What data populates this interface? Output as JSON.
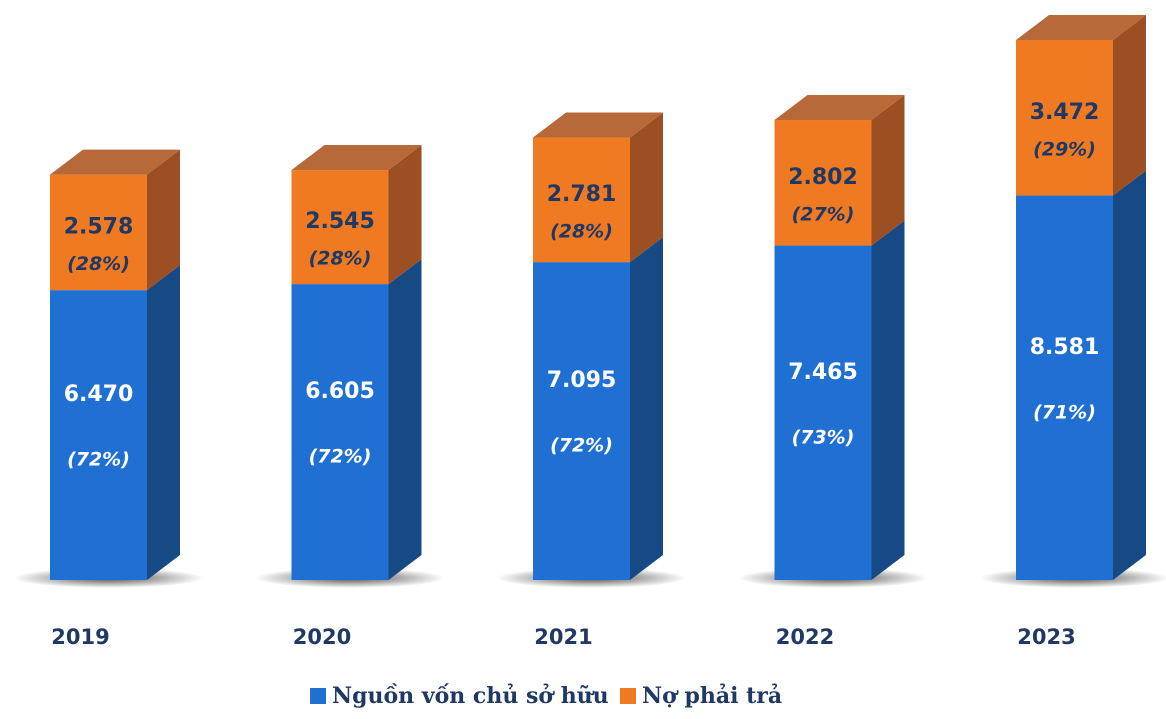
{
  "chart_data": {
    "type": "bar3d_stacked",
    "categories": [
      "2019",
      "2020",
      "2021",
      "2022",
      "2023"
    ],
    "series": [
      {
        "name": "Nguồn vốn chủ sở hữu",
        "color": "#1f70d2",
        "side_color": "#174a85",
        "values": [
          6470,
          6605,
          7095,
          7465,
          8581
        ],
        "value_labels": [
          "6.470",
          "6.605",
          "7.095",
          "7.465",
          "8.581"
        ],
        "percent_labels": [
          "(72%)",
          "(72%)",
          "(72%)",
          "(73%)",
          "(71%)"
        ]
      },
      {
        "name": "Nợ phải trả",
        "color": "#f07a22",
        "side_color": "#9c4f22",
        "top_color": "#b8693a",
        "values": [
          2578,
          2545,
          2781,
          2802,
          3472
        ],
        "value_labels": [
          "2.578",
          "2.545",
          "2.781",
          "2.802",
          "3.472"
        ],
        "percent_labels": [
          "(28%)",
          "(28%)",
          "(28%)",
          "(27%)",
          "(29%)"
        ]
      }
    ],
    "legend": "bottom"
  }
}
